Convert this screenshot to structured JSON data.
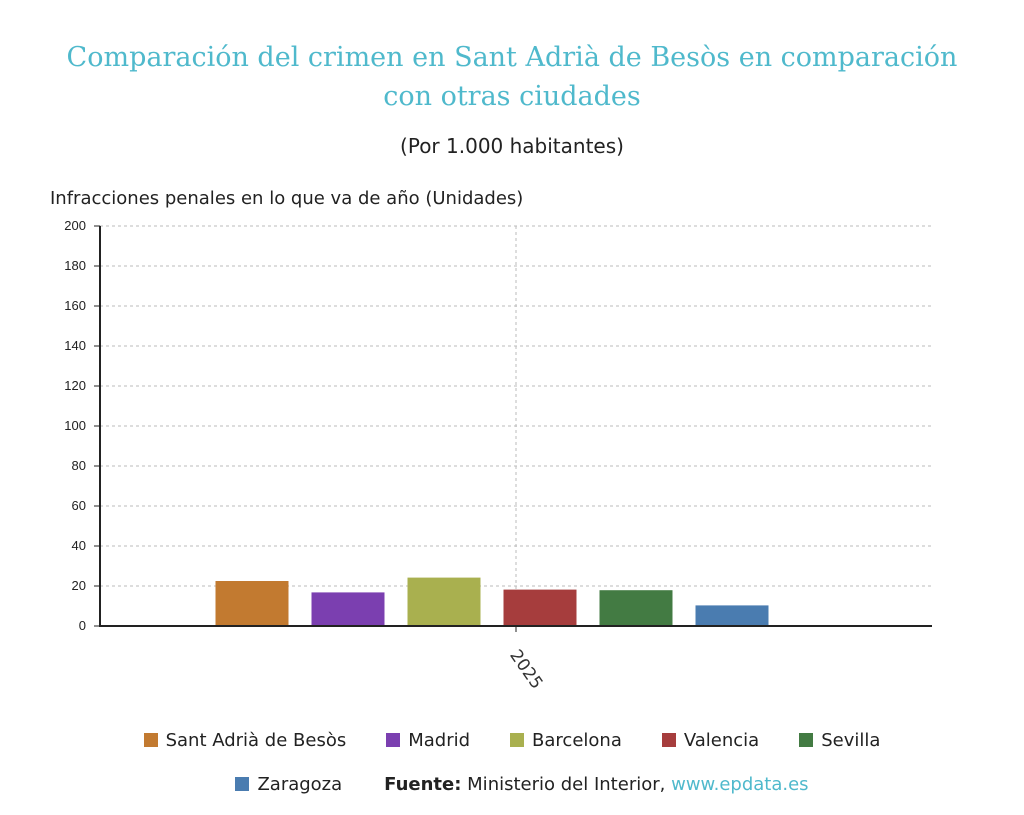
{
  "title": "Comparación del crimen en Sant Adrià de Besòs en comparación con otras ciudades",
  "subtitle": "(Por 1.000 habitantes)",
  "source": {
    "label": "Fuente:",
    "text": "Ministerio del Interior,",
    "link": "www.epdata.es"
  },
  "chart_data": {
    "type": "bar",
    "categories": [
      "2025"
    ],
    "ylabel": "Infracciones penales en lo que va de año (Unidades)",
    "ylim": [
      0,
      200
    ],
    "yticks": [
      0,
      20,
      40,
      60,
      80,
      100,
      120,
      140,
      160,
      180,
      200
    ],
    "grid": true,
    "legend_position": "bottom",
    "series": [
      {
        "name": "Sant Adrià de Besòs",
        "color": "#c27a30",
        "values": [
          22.5
        ]
      },
      {
        "name": "Madrid",
        "color": "#7b3fb0",
        "values": [
          16.8
        ]
      },
      {
        "name": "Barcelona",
        "color": "#a9b04f",
        "values": [
          24.2
        ]
      },
      {
        "name": "Valencia",
        "color": "#a63d3d",
        "values": [
          18.2
        ]
      },
      {
        "name": "Sevilla",
        "color": "#437b43",
        "values": [
          17.9
        ]
      },
      {
        "name": "Zaragoza",
        "color": "#4a7cb0",
        "values": [
          10.3
        ]
      }
    ]
  }
}
